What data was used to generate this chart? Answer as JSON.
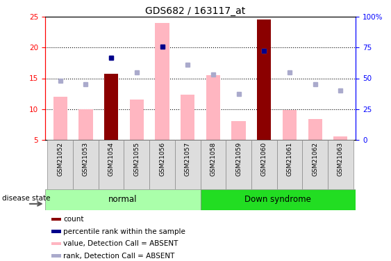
{
  "title": "GDS682 / 163117_at",
  "samples": [
    "GSM21052",
    "GSM21053",
    "GSM21054",
    "GSM21055",
    "GSM21056",
    "GSM21057",
    "GSM21058",
    "GSM21059",
    "GSM21060",
    "GSM21061",
    "GSM21062",
    "GSM21063"
  ],
  "bar_values": [
    12.0,
    10.0,
    15.7,
    11.5,
    24.0,
    12.3,
    15.5,
    8.0,
    24.6,
    9.8,
    8.4,
    5.5
  ],
  "bar_colors_dark": [
    false,
    false,
    true,
    false,
    false,
    false,
    false,
    false,
    true,
    false,
    false,
    false
  ],
  "rank_values": [
    14.6,
    14.0,
    18.4,
    16.0,
    20.2,
    17.2,
    15.6,
    12.5,
    19.5,
    16.0,
    14.0,
    13.0
  ],
  "count_values": [
    null,
    null,
    18.4,
    null,
    20.2,
    null,
    null,
    null,
    19.5,
    null,
    null,
    null
  ],
  "ylim": [
    5,
    25
  ],
  "yticks_left": [
    5,
    10,
    15,
    20,
    25
  ],
  "yticks_right_vals": [
    0,
    25,
    50,
    75,
    100
  ],
  "yticks_right_labels": [
    "0",
    "25",
    "50",
    "75",
    "100%"
  ],
  "groups": [
    {
      "label": "normal",
      "start": 0,
      "end": 6,
      "color": "#AAFFAA"
    },
    {
      "label": "Down syndrome",
      "start": 6,
      "end": 12,
      "color": "#22DD22"
    }
  ],
  "disease_state_label": "disease state",
  "bar_color_pink": "#FFB6C1",
  "bar_color_dark_red": "#8B0000",
  "rank_color_light": "#AAAACC",
  "count_color_dark": "#00008B",
  "legend_items": [
    {
      "color": "#8B0000",
      "label": "count",
      "marker": "s"
    },
    {
      "color": "#00008B",
      "label": "percentile rank within the sample",
      "marker": "s"
    },
    {
      "color": "#FFB6C1",
      "label": "value, Detection Call = ABSENT",
      "marker": "s"
    },
    {
      "color": "#AAAACC",
      "label": "rank, Detection Call = ABSENT",
      "marker": "s"
    }
  ]
}
